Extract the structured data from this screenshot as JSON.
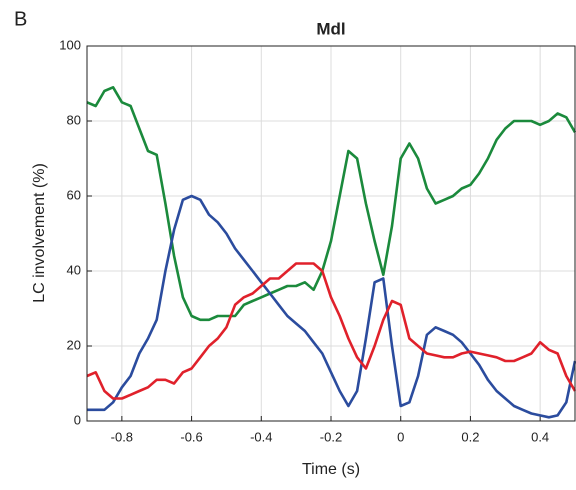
{
  "chart_data": {
    "type": "line",
    "panel_label": "B",
    "title": "Mdl",
    "x_label": "Time (s)",
    "y_label": "LC involvement (%)",
    "x": [
      -0.9,
      -0.875,
      -0.85,
      -0.825,
      -0.8,
      -0.775,
      -0.75,
      -0.725,
      -0.7,
      -0.675,
      -0.65,
      -0.625,
      -0.6,
      -0.575,
      -0.55,
      -0.525,
      -0.5,
      -0.475,
      -0.45,
      -0.425,
      -0.4,
      -0.375,
      -0.35,
      -0.325,
      -0.3,
      -0.275,
      -0.25,
      -0.225,
      -0.2,
      -0.175,
      -0.15,
      -0.125,
      -0.1,
      -0.075,
      -0.05,
      -0.025,
      0,
      0.025,
      0.05,
      0.075,
      0.1,
      0.125,
      0.15,
      0.175,
      0.2,
      0.225,
      0.25,
      0.275,
      0.3,
      0.325,
      0.35,
      0.375,
      0.4,
      0.425,
      0.45,
      0.475,
      0.5
    ],
    "series": [
      {
        "color": "#1b8a3c",
        "values": [
          85,
          84,
          88,
          89,
          85,
          84,
          78,
          72,
          71,
          58,
          44,
          33,
          28,
          27,
          27,
          28,
          28,
          28,
          31,
          32,
          33,
          34,
          35,
          36,
          36,
          37,
          35,
          40,
          48,
          60,
          72,
          70,
          58,
          48,
          39,
          52,
          70,
          74,
          70,
          62,
          58,
          59,
          60,
          62,
          63,
          66,
          70,
          75,
          78,
          80,
          80,
          80,
          79,
          80,
          82,
          81,
          77
        ]
      },
      {
        "color": "#2b4c9e",
        "values": [
          3,
          3,
          3,
          5,
          9,
          12,
          18,
          22,
          27,
          40,
          51,
          59,
          60,
          59,
          55,
          53,
          50,
          46,
          43,
          40,
          37,
          34,
          31,
          28,
          26,
          24,
          21,
          18,
          13,
          8,
          4,
          8,
          22,
          37,
          38,
          20,
          4,
          5,
          12,
          23,
          25,
          24,
          23,
          21,
          18,
          15,
          11,
          8,
          6,
          4,
          3,
          2,
          1.5,
          1,
          1.5,
          5,
          16
        ]
      },
      {
        "color": "#e0212b",
        "values": [
          12,
          13,
          8,
          6,
          6,
          7,
          8,
          9,
          11,
          11,
          10,
          13,
          14,
          17,
          20,
          22,
          25,
          31,
          33,
          34,
          36,
          38,
          38,
          40,
          42,
          42,
          42,
          40,
          33,
          28,
          22,
          17,
          14,
          20,
          27,
          32,
          31,
          22,
          20,
          18,
          17.5,
          17,
          17,
          18,
          18.5,
          18,
          17.5,
          17,
          16,
          16,
          17,
          18,
          21,
          19,
          18,
          12,
          8
        ]
      }
    ],
    "xlim": [
      -0.9,
      0.5
    ],
    "xticks": [
      -0.8,
      -0.6,
      -0.4,
      -0.2,
      0,
      0.2,
      0.4
    ],
    "ylim": [
      0,
      100
    ],
    "yticks": [
      0,
      20,
      40,
      60,
      80,
      100
    ],
    "grid": true
  }
}
